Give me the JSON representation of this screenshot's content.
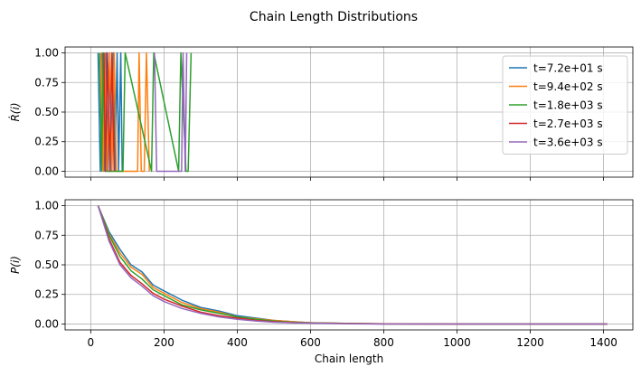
{
  "colors": {
    "c0": "#1f77b4",
    "c1": "#ff7f0e",
    "c2": "#2ca02c",
    "c3": "#d62728",
    "c4": "#9467bd",
    "grid": "#b0b0b0"
  },
  "chart_data": [
    {
      "type": "line",
      "suptitle": "Chain Length Distributions",
      "title": "",
      "xlabel": "",
      "ylabel": "Ṙ(i)",
      "xlim": [
        -70,
        1480
      ],
      "ylim": [
        -0.05,
        1.05
      ],
      "xticks": [
        0,
        200,
        400,
        600,
        800,
        1000,
        1200,
        1400
      ],
      "xtick_labels_shown": false,
      "yticks": [
        0.0,
        0.25,
        0.5,
        0.75,
        1.0
      ],
      "ytick_labels": [
        "0.00",
        "0.25",
        "0.50",
        "0.75",
        "1.00"
      ],
      "grid": true,
      "legend": "upper-right",
      "series": [
        {
          "name": "t=7.2e+01 s",
          "color_key": "c0",
          "x": [
            20,
            26,
            32,
            36,
            42,
            46,
            52,
            56,
            62,
            66,
            72,
            76,
            82,
            86
          ],
          "y": [
            1,
            0,
            1,
            0,
            1,
            0,
            1,
            0,
            1,
            0,
            1,
            0,
            1,
            0
          ]
        },
        {
          "name": "t=9.4e+02 s",
          "color_key": "c1",
          "x": [
            28,
            34,
            38,
            44,
            52,
            58,
            64,
            70,
            128,
            132,
            138,
            146,
            152,
            160
          ],
          "y": [
            1,
            0,
            1,
            0,
            1,
            0,
            1,
            0,
            0,
            1,
            0,
            0,
            1,
            0
          ]
        },
        {
          "name": "t=1.8e+03 s",
          "color_key": "c2",
          "x": [
            24,
            30,
            34,
            40,
            88,
            94,
            166,
            172,
            240,
            246,
            260,
            266,
            274
          ],
          "y": [
            1,
            0,
            1,
            0,
            0,
            1,
            0,
            1,
            0,
            1,
            0,
            0,
            1
          ]
        },
        {
          "name": "t=2.7e+03 s",
          "color_key": "c3",
          "x": [
            36,
            40,
            46,
            52,
            58,
            64
          ],
          "y": [
            1,
            0,
            1,
            0,
            1,
            0
          ]
        },
        {
          "name": "t=3.6e+03 s",
          "color_key": "c4",
          "x": [
            174,
            180,
            184,
            240,
            248,
            252,
            258,
            262
          ],
          "y": [
            1,
            0,
            0,
            0,
            0,
            1,
            0,
            1
          ]
        }
      ]
    },
    {
      "type": "line",
      "title": "",
      "xlabel": "Chain length",
      "ylabel": "P(i)",
      "xlim": [
        -70,
        1480
      ],
      "ylim": [
        -0.05,
        1.05
      ],
      "xticks": [
        0,
        200,
        400,
        600,
        800,
        1000,
        1200,
        1400
      ],
      "xtick_labels": [
        "0",
        "200",
        "400",
        "600",
        "800",
        "1000",
        "1200",
        "1400"
      ],
      "yticks": [
        0.0,
        0.25,
        0.5,
        0.75,
        1.0
      ],
      "ytick_labels": [
        "0.00",
        "0.25",
        "0.50",
        "0.75",
        "1.00"
      ],
      "grid": true,
      "series": [
        {
          "name": "t=7.2e+01 s",
          "color_key": "c0",
          "x": [
            20,
            50,
            80,
            110,
            140,
            170,
            200,
            250,
            300,
            350,
            400,
            450,
            500,
            550,
            600,
            700,
            800,
            1000,
            1200,
            1410
          ],
          "y": [
            1.0,
            0.78,
            0.63,
            0.5,
            0.44,
            0.33,
            0.28,
            0.2,
            0.14,
            0.11,
            0.07,
            0.05,
            0.03,
            0.02,
            0.01,
            0.005,
            0.002,
            0.0,
            0.0,
            0.0
          ]
        },
        {
          "name": "t=9.4e+02 s",
          "color_key": "c1",
          "x": [
            20,
            50,
            80,
            110,
            140,
            170,
            200,
            250,
            300,
            350,
            400,
            450,
            500,
            550,
            600,
            700,
            800,
            1000,
            1200,
            1410
          ],
          "y": [
            1.0,
            0.76,
            0.6,
            0.48,
            0.42,
            0.31,
            0.26,
            0.18,
            0.13,
            0.1,
            0.06,
            0.045,
            0.03,
            0.02,
            0.01,
            0.005,
            0.002,
            0.0,
            0.0,
            0.0
          ]
        },
        {
          "name": "t=1.8e+03 s",
          "color_key": "c2",
          "x": [
            20,
            50,
            80,
            110,
            140,
            170,
            200,
            250,
            300,
            350,
            400,
            450,
            500,
            550,
            600,
            700,
            800,
            1000,
            1200,
            1410
          ],
          "y": [
            1.0,
            0.75,
            0.57,
            0.45,
            0.38,
            0.29,
            0.24,
            0.16,
            0.12,
            0.09,
            0.06,
            0.04,
            0.025,
            0.015,
            0.01,
            0.004,
            0.001,
            0.0,
            0.0,
            0.0
          ]
        },
        {
          "name": "t=2.7e+03 s",
          "color_key": "c3",
          "x": [
            20,
            50,
            80,
            110,
            140,
            170,
            200,
            250,
            300,
            350,
            400,
            450,
            500,
            550,
            600,
            700,
            800,
            1000,
            1200,
            1410
          ],
          "y": [
            1.0,
            0.72,
            0.52,
            0.41,
            0.34,
            0.26,
            0.21,
            0.15,
            0.1,
            0.07,
            0.05,
            0.03,
            0.02,
            0.012,
            0.008,
            0.003,
            0.001,
            0.0,
            0.0,
            0.0
          ]
        },
        {
          "name": "t=3.6e+03 s",
          "color_key": "c4",
          "x": [
            20,
            50,
            80,
            110,
            140,
            170,
            200,
            250,
            300,
            350,
            400,
            450,
            500,
            550,
            600,
            700,
            800,
            1000,
            1200,
            1410
          ],
          "y": [
            1.0,
            0.7,
            0.5,
            0.39,
            0.32,
            0.24,
            0.19,
            0.13,
            0.09,
            0.06,
            0.04,
            0.025,
            0.015,
            0.01,
            0.006,
            0.002,
            0.0,
            0.0,
            0.0,
            0.0
          ]
        }
      ]
    }
  ]
}
